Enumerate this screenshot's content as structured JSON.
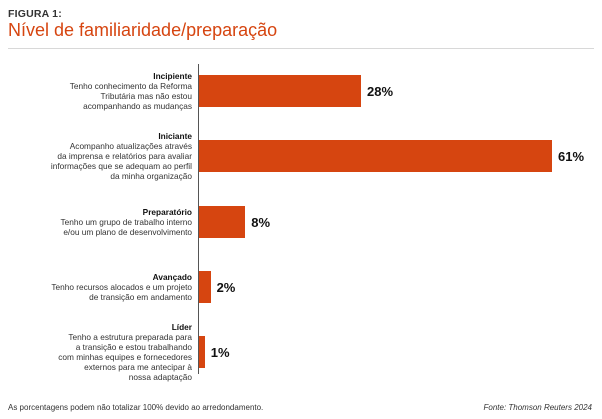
{
  "figure": {
    "label": "FIGURA 1:",
    "title": "Nível de familiaridade/preparação"
  },
  "chart_data": {
    "type": "bar",
    "orientation": "horizontal",
    "title": "Nível de familiaridade/preparação",
    "xlim": [
      0,
      61
    ],
    "categories": [
      {
        "name": "Incipiente",
        "description": "Tenho conhecimento da Reforma\nTributária mas não estou\nacompanhando as mudanças",
        "value": 28,
        "label": "28%"
      },
      {
        "name": "Iniciante",
        "description": "Acompanho atualizações através\nda imprensa e relatórios para avaliar\ninformações que se adequam ao perfil\nda minha organização",
        "value": 61,
        "label": "61%"
      },
      {
        "name": "Preparatório",
        "description": "Tenho um grupo de trabalho interno\ne/ou um plano de desenvolvimento",
        "value": 8,
        "label": "8%"
      },
      {
        "name": "Avançado",
        "description": "Tenho recursos alocados e um projeto\nde transição em andamento",
        "value": 2,
        "label": "2%"
      },
      {
        "name": "Líder",
        "description": "Tenho a estrutura preparada para\na transição e estou trabalhando\ncom minhas equipes e fornecedores\nexternos para me antecipar à\nnossa adaptação",
        "value": 1,
        "label": "1%"
      }
    ],
    "colors": {
      "bar": "#d64510"
    },
    "grid": false,
    "legend": "none"
  },
  "footnote": "As porcentagens podem não totalizar 100% devido ao arredondamento.",
  "source": "Fonte: Thomson Reuters 2024"
}
